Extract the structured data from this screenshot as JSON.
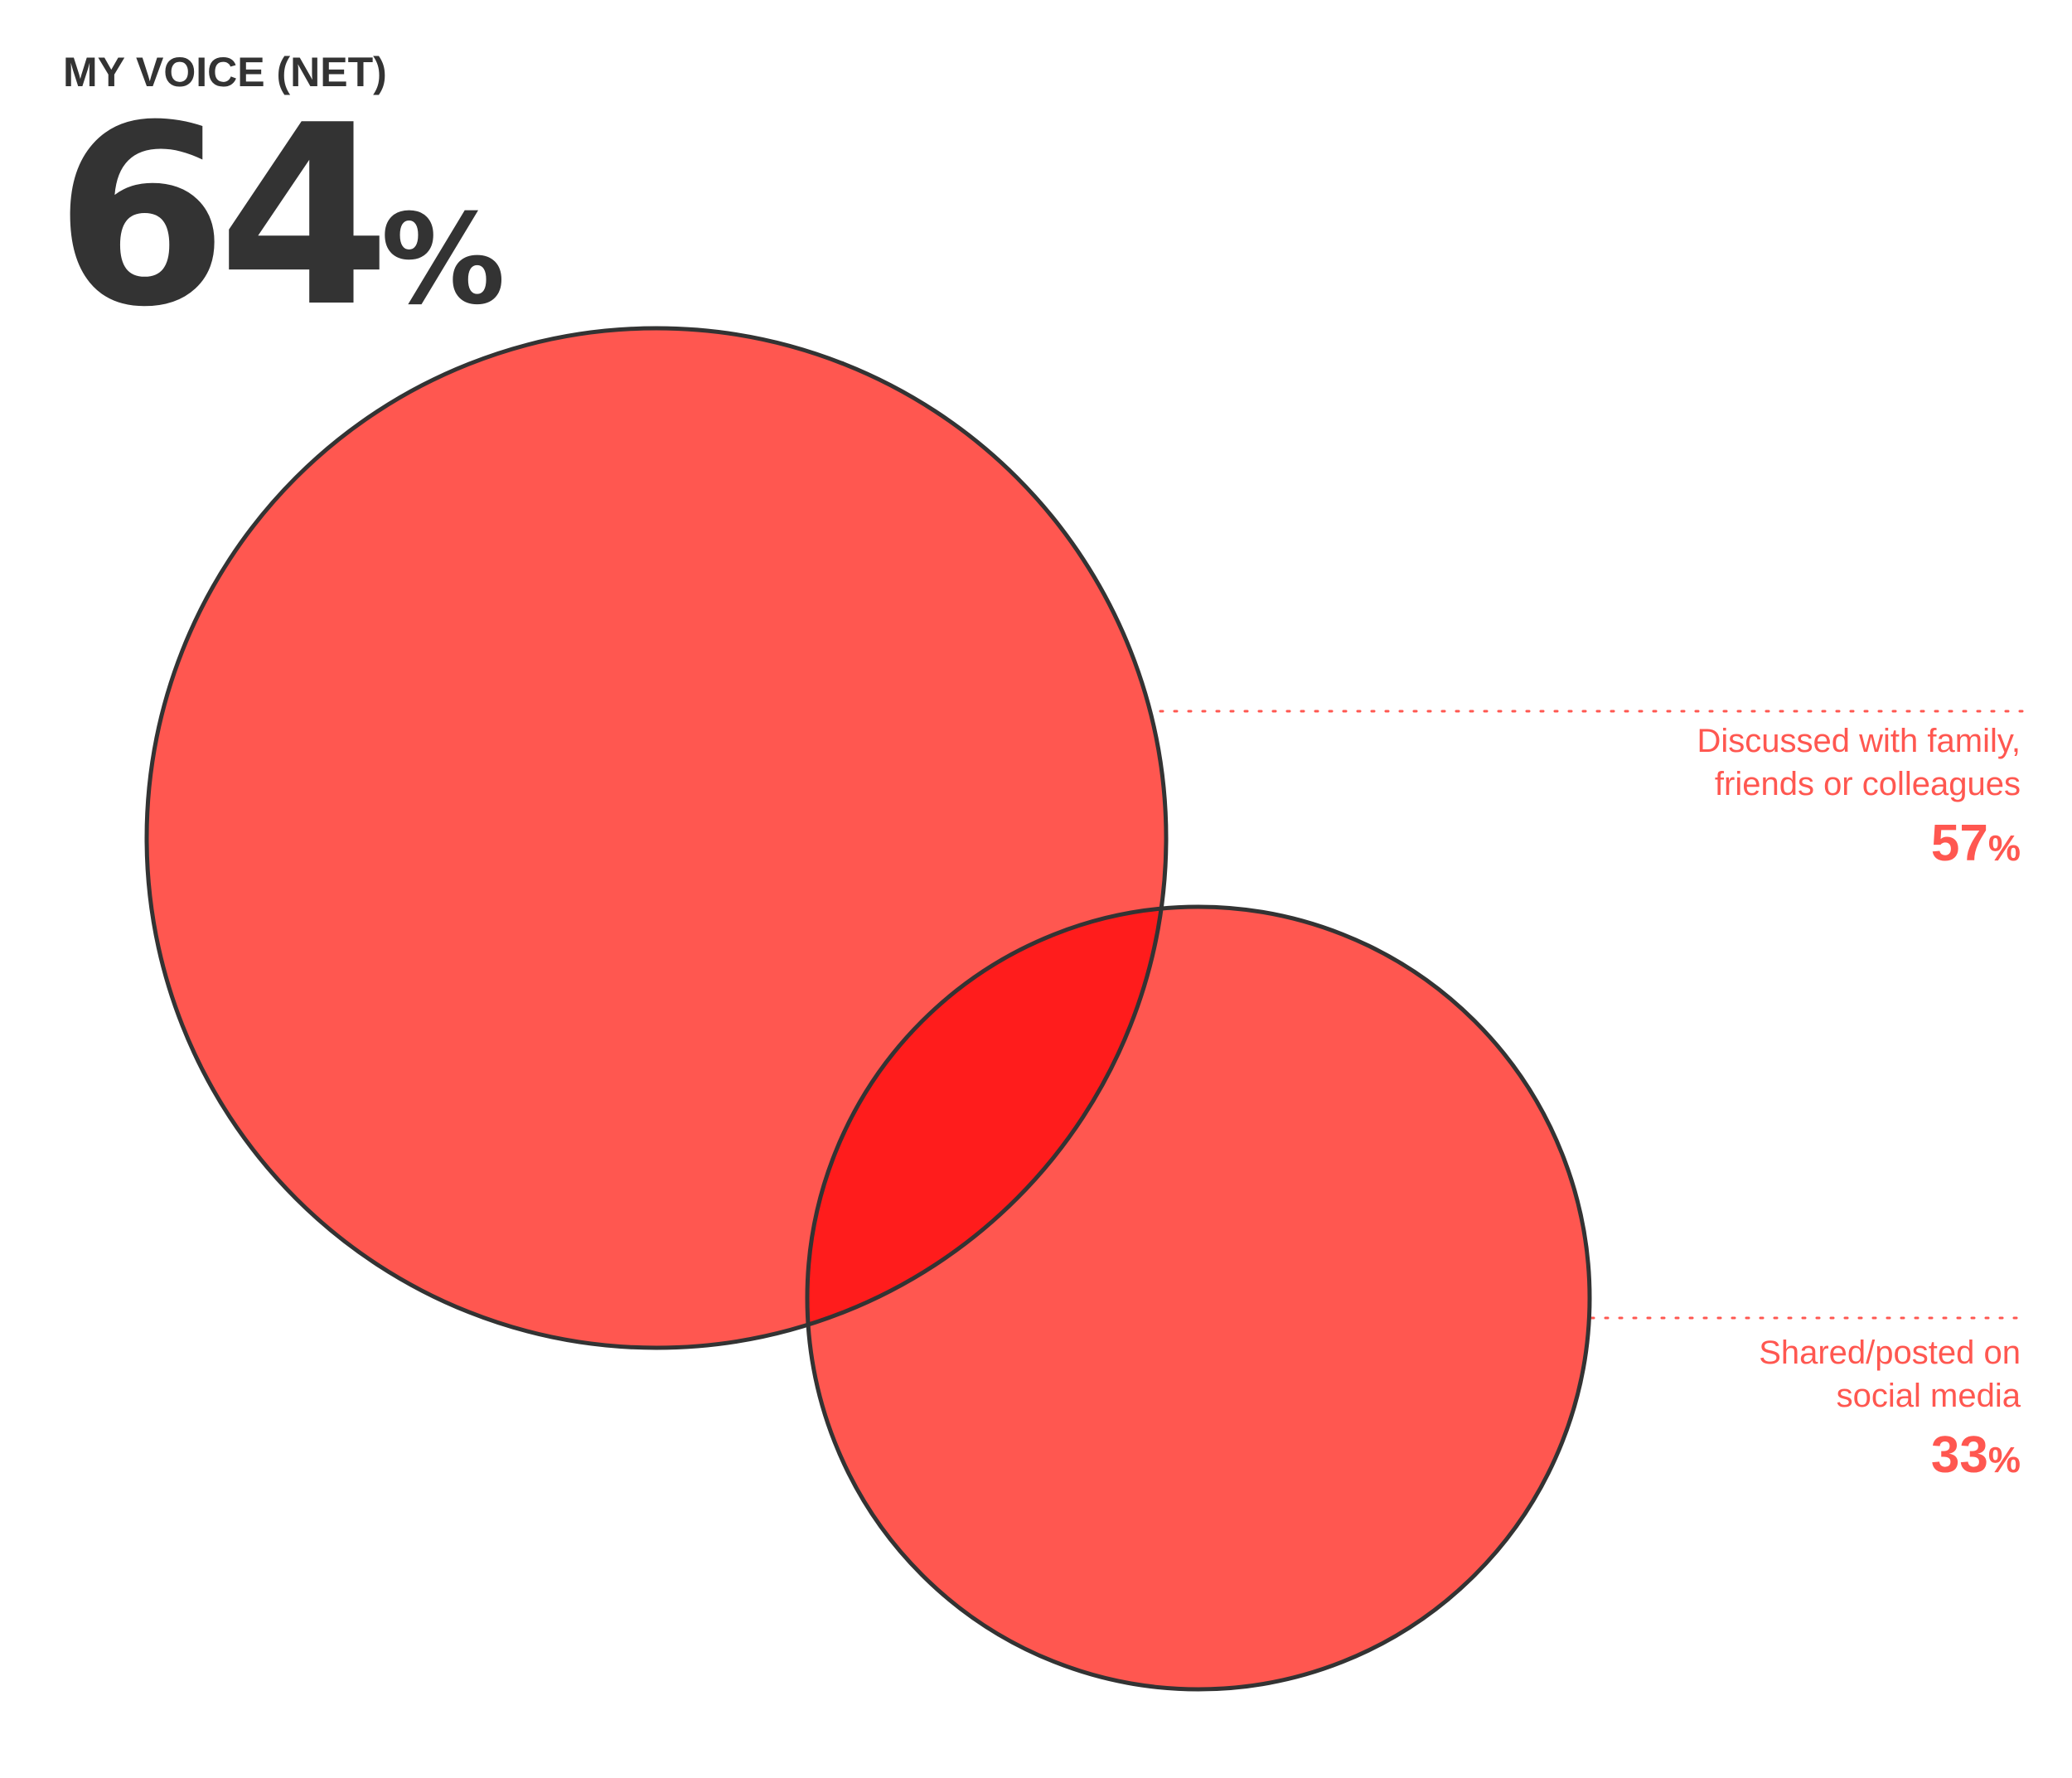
{
  "headline": {
    "label": "MY VOICE (NET)",
    "value": "64",
    "unit": "%"
  },
  "colors": {
    "circle_fill": "#ff5750",
    "overlap_fill": "#ff1c1c",
    "outline": "#333333",
    "label_text": "#ff5750",
    "headline_text": "#333333"
  },
  "sets": [
    {
      "id": "discussed",
      "label_lines": [
        "Discussed with family,",
        "friends or colleagues"
      ],
      "value": "57",
      "unit": "%"
    },
    {
      "id": "shared",
      "label_lines": [
        "Shared/posted on",
        "social media"
      ],
      "value": "33",
      "unit": "%"
    }
  ]
}
